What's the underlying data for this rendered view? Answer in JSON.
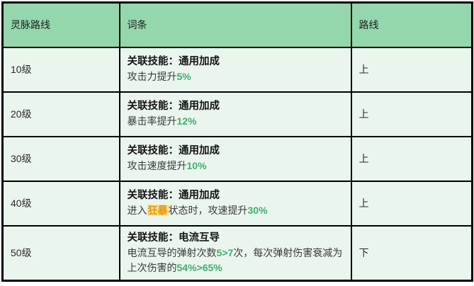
{
  "colors": {
    "header_bg": "#95d7ac",
    "row_bg": "#eaf5ee",
    "border": "#000000",
    "green_accent": "#3fae6e",
    "highlight_bg": "#fce47c",
    "highlight_text": "#e39420"
  },
  "table": {
    "columns": [
      {
        "label": "灵脉路线"
      },
      {
        "label": "词条"
      },
      {
        "label": "路线"
      }
    ],
    "rows": [
      {
        "level": "10级",
        "skill_title": "关联技能：通用加成",
        "desc": [
          {
            "t": "text",
            "v": "攻击力提升"
          },
          {
            "t": "green",
            "v": "5%"
          }
        ],
        "route": "上",
        "tall": false
      },
      {
        "level": "20级",
        "skill_title": "关联技能：通用加成",
        "desc": [
          {
            "t": "text",
            "v": "暴击率提升"
          },
          {
            "t": "green",
            "v": "12%"
          }
        ],
        "route": "上",
        "tall": false
      },
      {
        "level": "30级",
        "skill_title": "关联技能：通用加成",
        "desc": [
          {
            "t": "text",
            "v": "攻击速度提升"
          },
          {
            "t": "green",
            "v": "10%"
          }
        ],
        "route": "上",
        "tall": false
      },
      {
        "level": "40级",
        "skill_title": "关联技能：通用加成",
        "desc": [
          {
            "t": "text",
            "v": "进入"
          },
          {
            "t": "highlight",
            "v": "狂暴"
          },
          {
            "t": "text",
            "v": "状态时，攻速提升"
          },
          {
            "t": "green",
            "v": "30%"
          }
        ],
        "route": "上",
        "tall": false
      },
      {
        "level": "50级",
        "skill_title": "关联技能：电流互导",
        "desc": [
          {
            "t": "text",
            "v": "电流互导的弹射次数"
          },
          {
            "t": "green",
            "v": "5>7"
          },
          {
            "t": "text",
            "v": "次，每次弹射伤害衰减为上次伤害的"
          },
          {
            "t": "green",
            "v": "54%>65%"
          }
        ],
        "route": "下",
        "tall": true
      }
    ]
  }
}
